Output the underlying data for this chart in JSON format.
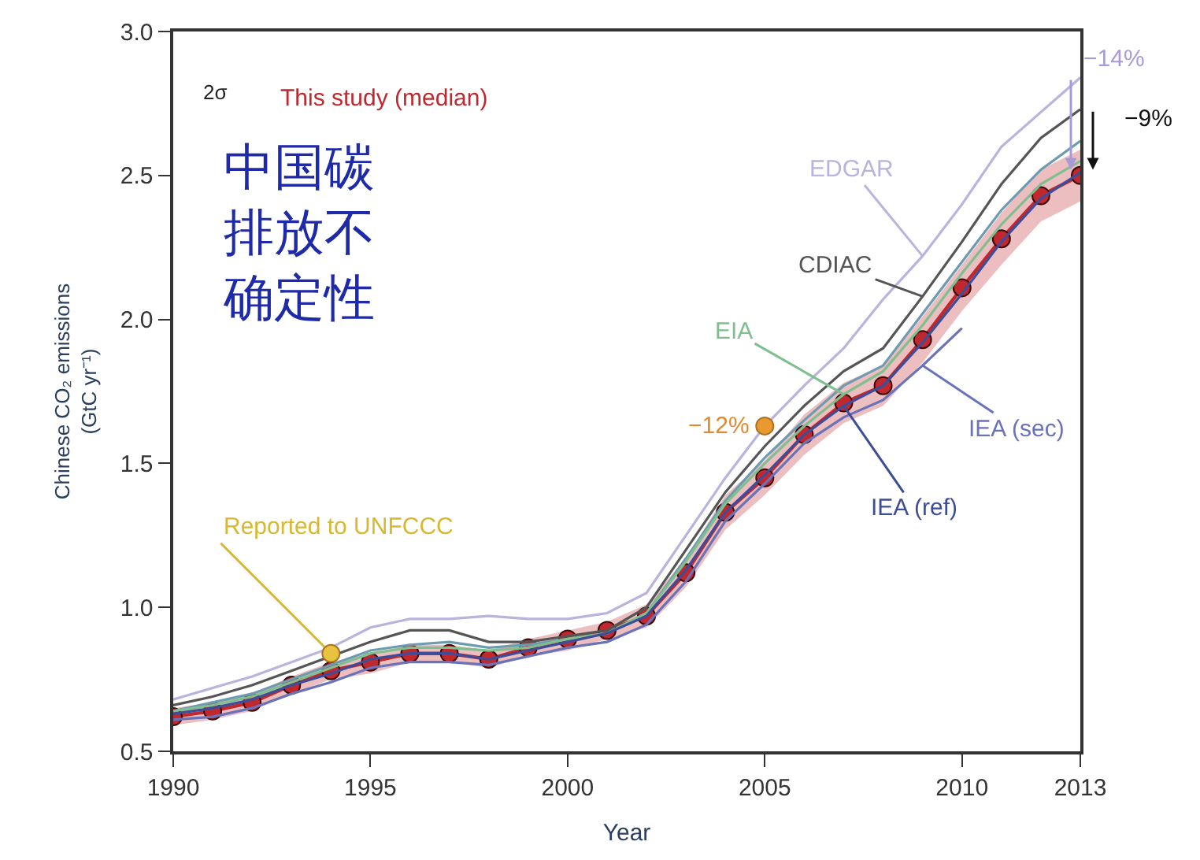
{
  "chart_data": {
    "type": "line",
    "xlabel": "Year",
    "ylabel": "Chinese CO₂ emissions\n(GtC yr⁻¹)",
    "x": [
      1990,
      1991,
      1992,
      1993,
      1994,
      1995,
      1996,
      1997,
      1998,
      1999,
      2000,
      2001,
      2002,
      2003,
      2004,
      2005,
      2006,
      2007,
      2008,
      2009,
      2010,
      2011,
      2012,
      2013
    ],
    "series": [
      {
        "name": "This study (median)",
        "color": "#c0282d",
        "marker": "circle",
        "values": [
          0.62,
          0.64,
          0.67,
          0.73,
          0.78,
          0.81,
          0.84,
          0.84,
          0.82,
          0.86,
          0.89,
          0.92,
          0.97,
          1.12,
          1.33,
          1.45,
          1.6,
          1.71,
          1.77,
          1.93,
          2.11,
          2.28,
          2.43,
          2.5
        ],
        "lower": [
          0.59,
          0.61,
          0.64,
          0.7,
          0.75,
          0.77,
          0.81,
          0.81,
          0.79,
          0.83,
          0.85,
          0.89,
          0.93,
          1.07,
          1.27,
          1.39,
          1.53,
          1.64,
          1.7,
          1.85,
          2.03,
          2.19,
          2.34,
          2.41
        ],
        "upper": [
          0.65,
          0.67,
          0.7,
          0.76,
          0.81,
          0.84,
          0.87,
          0.87,
          0.85,
          0.89,
          0.92,
          0.95,
          1.01,
          1.17,
          1.39,
          1.51,
          1.67,
          1.78,
          1.84,
          2.01,
          2.19,
          2.37,
          2.52,
          2.59
        ]
      },
      {
        "name": "EDGAR",
        "color": "#b9b3dd",
        "values": [
          0.68,
          0.72,
          0.76,
          0.81,
          0.86,
          0.93,
          0.96,
          0.96,
          0.97,
          0.96,
          0.96,
          0.98,
          1.05,
          1.25,
          1.45,
          1.63,
          1.77,
          1.9,
          2.07,
          2.22,
          2.4,
          2.6,
          2.72,
          2.84
        ]
      },
      {
        "name": "CDIAC",
        "color": "#555555",
        "values": [
          0.66,
          0.69,
          0.73,
          0.78,
          0.83,
          0.88,
          0.92,
          0.92,
          0.88,
          0.88,
          0.9,
          0.92,
          1.0,
          1.2,
          1.4,
          1.56,
          1.7,
          1.82,
          1.9,
          2.08,
          2.27,
          2.47,
          2.63,
          2.73
        ]
      },
      {
        "color": "#6d9bb0",
        "values": [
          0.64,
          0.67,
          0.7,
          0.75,
          0.8,
          0.85,
          0.87,
          0.88,
          0.86,
          0.87,
          0.89,
          0.91,
          0.98,
          1.17,
          1.37,
          1.52,
          1.65,
          1.77,
          1.84,
          2.02,
          2.2,
          2.38,
          2.52,
          2.62
        ]
      },
      {
        "name": "EIA",
        "color": "#7fbf8f",
        "values": [
          0.64,
          0.66,
          0.69,
          0.74,
          0.79,
          0.84,
          0.86,
          0.86,
          0.85,
          0.86,
          0.89,
          0.91,
          0.98,
          1.16,
          1.36,
          1.5,
          1.63,
          1.74,
          1.82,
          1.98,
          2.16,
          2.33,
          2.47,
          2.55
        ]
      },
      {
        "name": "IEA (sec)",
        "color": "#6a73b8",
        "x": [
          1990,
          1991,
          1992,
          1993,
          1994,
          1995,
          1996,
          1997,
          1998,
          1999,
          2000,
          2001,
          2002,
          2003,
          2004,
          2005,
          2006,
          2007,
          2008,
          2009,
          2010
        ],
        "values": [
          0.61,
          0.62,
          0.65,
          0.7,
          0.74,
          0.79,
          0.81,
          0.81,
          0.8,
          0.83,
          0.86,
          0.88,
          0.94,
          1.09,
          1.3,
          1.43,
          1.57,
          1.66,
          1.72,
          1.84,
          1.97
        ]
      },
      {
        "name": "IEA (ref)",
        "color": "#3c4d9a",
        "values": [
          0.63,
          0.65,
          0.68,
          0.73,
          0.77,
          0.82,
          0.84,
          0.84,
          0.82,
          0.85,
          0.88,
          0.91,
          0.97,
          1.13,
          1.33,
          1.46,
          1.6,
          1.7,
          1.77,
          1.92,
          2.09,
          2.27,
          2.42,
          2.51
        ]
      },
      {
        "type": "scatter",
        "marker": "circle",
        "color": "#e8c340",
        "x": [
          1994
        ],
        "values": [
          0.84
        ]
      },
      {
        "type": "scatter",
        "marker": "circle",
        "color": "#e89a30",
        "x": [
          2005
        ],
        "values": [
          1.63
        ]
      }
    ],
    "annotations": [
      "2σ",
      "中国碳排放不确定性",
      {
        "text": "Reported to UNFCCC",
        "x": 1994,
        "y": 0.84
      },
      {
        "text": "−12%",
        "x": 2005,
        "y": 1.63
      },
      {
        "text": "−14%",
        "x": 2013,
        "y": 2.84
      },
      {
        "text": "−9%",
        "x": 2013,
        "y": 2.73
      }
    ],
    "xlim": [
      1990,
      2013
    ],
    "xticks": [
      1990,
      1995,
      2000,
      2005,
      2010,
      2013
    ],
    "ylim": [
      0.5,
      3.0
    ],
    "yticks": [
      {
        "value": 0.5,
        "label": "0.5"
      },
      {
        "value": 1.0,
        "label": "1.0"
      },
      {
        "value": 1.5,
        "label": "1.5"
      },
      {
        "value": 2.0,
        "label": "2.0"
      },
      {
        "value": 2.5,
        "label": "2.5"
      },
      {
        "value": 3.0,
        "label": "3.0"
      }
    ],
    "marker": "none"
  }
}
